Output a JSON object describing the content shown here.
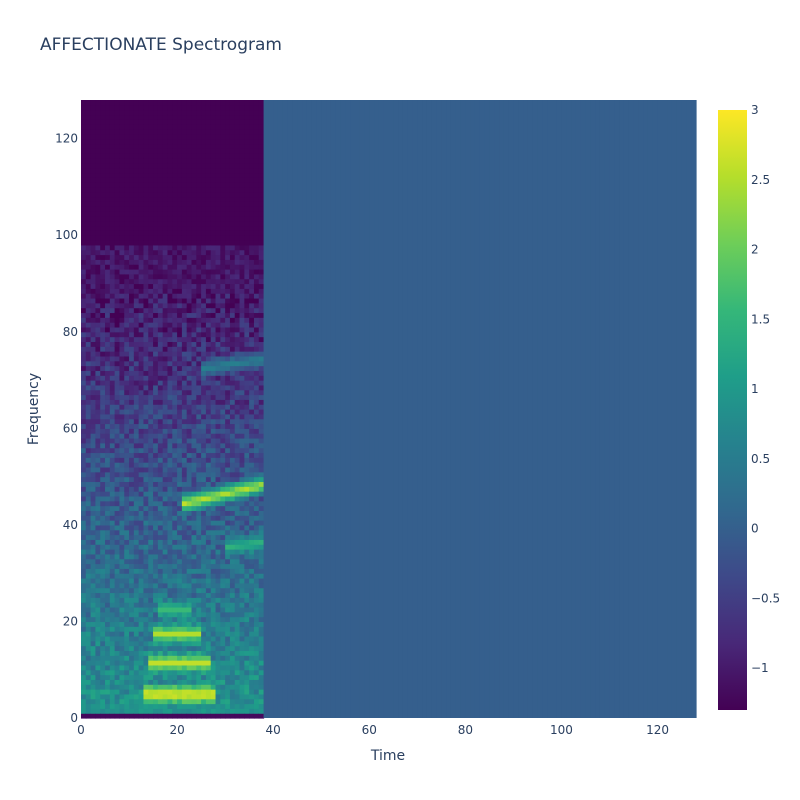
{
  "chart_data": {
    "type": "heatmap",
    "title": "AFFECTIONATE Spectrogram",
    "xlabel": "Time",
    "ylabel": "Frequency",
    "xlim": [
      0,
      128
    ],
    "ylim": [
      0,
      128
    ],
    "x_ticks": [
      0,
      20,
      40,
      60,
      80,
      100,
      120
    ],
    "y_ticks": [
      0,
      20,
      40,
      60,
      80,
      100,
      120
    ],
    "colorscale": "Viridis",
    "color_range": [
      -1.3,
      3
    ],
    "colorbar_ticks": [
      3,
      2.5,
      2,
      1.5,
      1,
      0.5,
      0,
      -0.5,
      -1
    ],
    "colorbar_tick_labels": [
      "3",
      "2.5",
      "2",
      "1.5",
      "1",
      "0.5",
      "0",
      "−0.5",
      "−1"
    ],
    "grid_size": [
      128,
      128
    ],
    "active_time_range": [
      0,
      38
    ],
    "fill_value": 0,
    "harmonics": [
      {
        "freq_start": 4.5,
        "freq_end": 4.5,
        "time_start": 13,
        "time_end": 27,
        "value": 3
      },
      {
        "freq_start": 11,
        "freq_end": 11,
        "time_start": 14,
        "time_end": 26,
        "value": 2.6
      },
      {
        "freq_start": 17,
        "freq_end": 17,
        "time_start": 15,
        "time_end": 24,
        "value": 2.5
      },
      {
        "freq_start": 22,
        "freq_end": 22,
        "time_start": 16,
        "time_end": 22,
        "value": 1.6
      },
      {
        "freq_start": 44,
        "freq_end": 48,
        "time_start": 21,
        "time_end": 38,
        "value": 2.6
      },
      {
        "freq_start": 35,
        "freq_end": 36,
        "time_start": 30,
        "time_end": 38,
        "value": 1.5
      },
      {
        "freq_start": 72,
        "freq_end": 74,
        "time_start": 25,
        "time_end": 38,
        "value": 0.6
      }
    ]
  }
}
